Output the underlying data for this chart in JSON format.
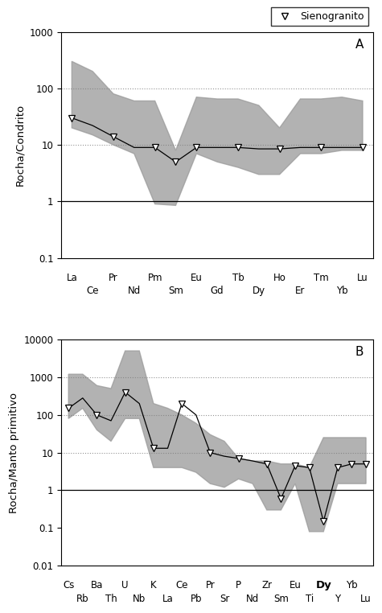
{
  "panel_A": {
    "ylabel": "Rocha/Condrito",
    "panel_label": "A",
    "ylim": [
      0.1,
      1000
    ],
    "yticks": [
      0.1,
      1,
      10,
      100,
      1000
    ],
    "ytick_labels": [
      "0.1",
      "1",
      "10",
      "100",
      "1000"
    ],
    "hlines": [
      1,
      10,
      100
    ],
    "top_labels": [
      "La",
      "Pr",
      "Pm",
      "Eu",
      "Tb",
      "Ho",
      "Tm",
      "Lu"
    ],
    "bottom_labels": [
      "Ce",
      "Nd",
      "Sm",
      "Gd",
      "Dy",
      "Er",
      "Yb"
    ],
    "top_positions": [
      0,
      2,
      4,
      6,
      8,
      10,
      12,
      14
    ],
    "bottom_positions": [
      1,
      3,
      5,
      7,
      9,
      11,
      13
    ],
    "line_x": [
      0,
      1,
      2,
      3,
      4,
      5,
      6,
      7,
      8,
      9,
      10,
      11,
      12,
      13,
      14
    ],
    "line_data": [
      30,
      22,
      14,
      9,
      9,
      5,
      9,
      9,
      9,
      8.5,
      8.5,
      9,
      9,
      9,
      9
    ],
    "marker_x": [
      0,
      2,
      4,
      5,
      6,
      8,
      10,
      12,
      14
    ],
    "marker_y": [
      30,
      14,
      9,
      5,
      9,
      9,
      8.5,
      9,
      9
    ],
    "shade_upper": [
      300,
      200,
      80,
      60,
      60,
      8,
      70,
      65,
      65,
      50,
      20,
      65,
      65,
      70,
      60
    ],
    "shade_lower": [
      20,
      15,
      10,
      7,
      0.9,
      0.85,
      7,
      5,
      4,
      3,
      3,
      7,
      7,
      8,
      8
    ],
    "shade_x": [
      0,
      1,
      2,
      3,
      4,
      5,
      6,
      7,
      8,
      9,
      10,
      11,
      12,
      13,
      14
    ]
  },
  "panel_B": {
    "ylabel": "Rocha/Manto primitivo",
    "panel_label": "B",
    "ylim": [
      0.01,
      10000
    ],
    "yticks": [
      0.01,
      0.1,
      1,
      10,
      100,
      1000,
      10000
    ],
    "ytick_labels": [
      "0.01",
      "0.1",
      "1",
      "10",
      "100",
      "1000",
      "10000"
    ],
    "hlines": [
      1,
      10,
      100,
      1000
    ],
    "top_labels": [
      "Cs",
      "Ba",
      "U",
      "K",
      "Ce",
      "Pr",
      "P",
      "Zr",
      "Eu",
      "Dy",
      "Yb"
    ],
    "bottom_labels": [
      "Rb",
      "Th",
      "Nb",
      "La",
      "Pb",
      "Sr",
      "Nd",
      "Sm",
      "Ti",
      "Y",
      "Lu"
    ],
    "top_positions": [
      0,
      2,
      4,
      6,
      8,
      10,
      12,
      14,
      16,
      18,
      20
    ],
    "bottom_positions": [
      1,
      3,
      5,
      7,
      9,
      11,
      13,
      15,
      17,
      19,
      21
    ],
    "line_x": [
      0,
      1,
      2,
      3,
      4,
      5,
      6,
      7,
      8,
      9,
      10,
      11,
      12,
      13,
      14,
      15,
      16,
      17,
      18,
      19,
      20,
      21
    ],
    "line_data": [
      150,
      280,
      100,
      70,
      400,
      200,
      13,
      13,
      200,
      100,
      10,
      8,
      7,
      6,
      5,
      0.6,
      4.5,
      4,
      0.15,
      4,
      5,
      5
    ],
    "marker_x": [
      0,
      2,
      4,
      6,
      8,
      10,
      12,
      14,
      15,
      16,
      17,
      18,
      19,
      20,
      21
    ],
    "marker_y": [
      150,
      100,
      400,
      13,
      200,
      10,
      7,
      5,
      0.6,
      4.5,
      4,
      0.15,
      4,
      5,
      5
    ],
    "shade_upper": [
      1200,
      1200,
      600,
      500,
      5000,
      5000,
      200,
      150,
      100,
      60,
      30,
      20,
      7,
      6,
      6,
      5,
      5,
      4,
      25,
      25,
      25,
      25
    ],
    "shade_lower": [
      80,
      150,
      40,
      20,
      80,
      80,
      4,
      4,
      4,
      3,
      1.5,
      1.2,
      2,
      1.5,
      0.3,
      0.3,
      1.5,
      0.08,
      0.08,
      1.5,
      1.5,
      1.5
    ]
  },
  "shade_color": "#999999",
  "shade_alpha": 0.75,
  "line_color": "#000000",
  "marker_facecolor": "#ffffff",
  "marker_edgecolor": "#000000",
  "marker_size": 6,
  "legend_label": "Sienogranito",
  "background_color": "#ffffff"
}
